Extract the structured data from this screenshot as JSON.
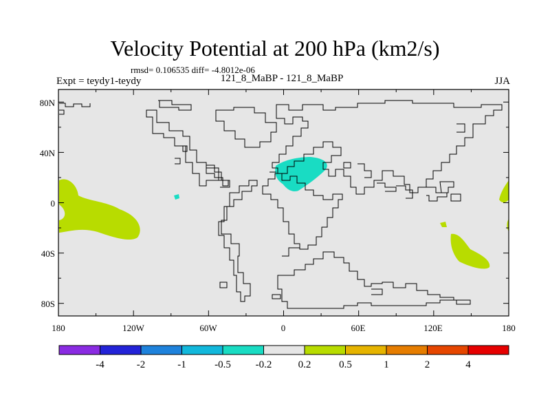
{
  "title": "Velocity Potential at 200 hPa (km2/s)",
  "stats": "rmsd= 0.106535 diff= -4.8012e-06",
  "experiment": "Expt = teydy1-teydy",
  "case_label": "121_8_MaBP - 121_8_MaBP",
  "season": "JJA",
  "map": {
    "background_color": "#e6e6e6",
    "lat_ticks": [
      "80N",
      "40N",
      "0",
      "40S",
      "80S"
    ],
    "lon_ticks": [
      "180",
      "120W",
      "60W",
      "0",
      "60E",
      "120E",
      "180"
    ]
  },
  "colorbar": {
    "colors": [
      "#8a2be2",
      "#2323d8",
      "#1e82dc",
      "#12b8dc",
      "#19dcc3",
      "#e6e6e6",
      "#b8dc00",
      "#e6b400",
      "#e67d00",
      "#e64600",
      "#e60000"
    ],
    "labels": [
      "-4",
      "-2",
      "-1",
      "-0.5",
      "-0.2",
      "0.2",
      "0.5",
      "1",
      "2",
      "4"
    ]
  }
}
